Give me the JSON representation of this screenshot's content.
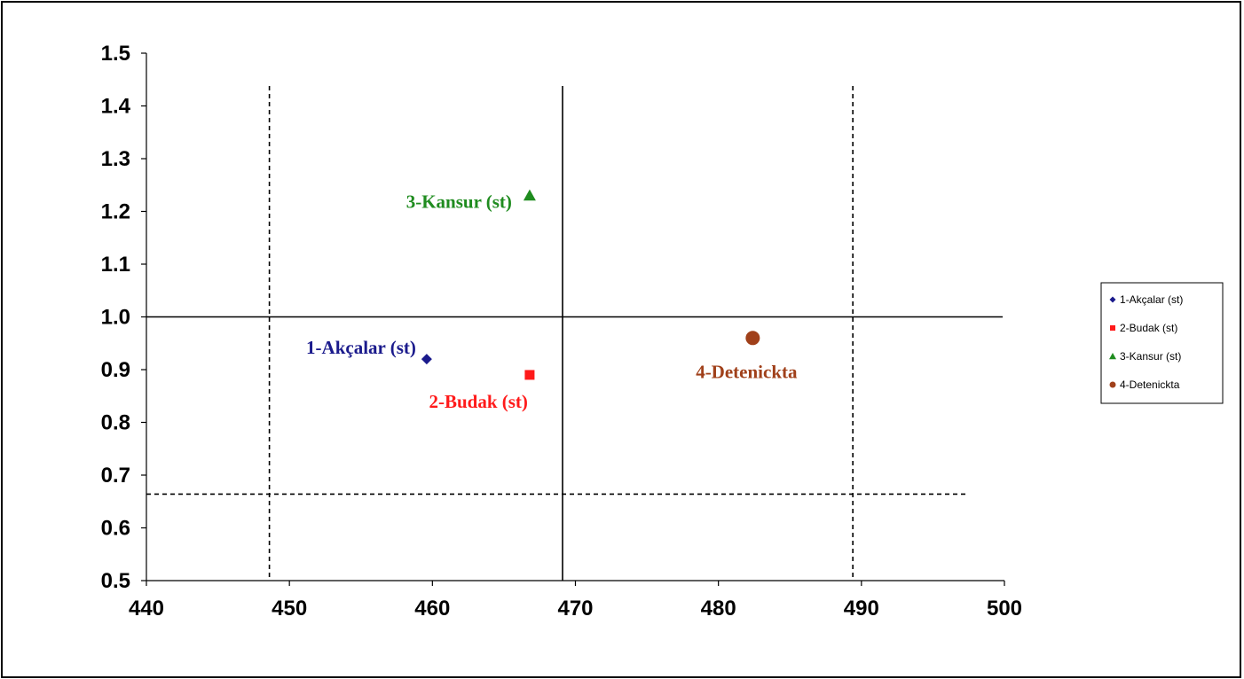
{
  "chart_data": {
    "type": "scatter",
    "title": "",
    "xlabel": "",
    "ylabel": "",
    "xlim": [
      440,
      500
    ],
    "ylim": [
      0.5,
      1.5
    ],
    "x_ticks": [
      440,
      450,
      460,
      470,
      480,
      490,
      500
    ],
    "x_tick_labels": [
      "440",
      "450",
      "460",
      "470",
      "480",
      "490",
      "500"
    ],
    "y_ticks": [
      0.5,
      0.6,
      0.7,
      0.8,
      0.9,
      1.0,
      1.1,
      1.2,
      1.3,
      1.4,
      1.5
    ],
    "y_tick_labels": [
      "0.5",
      "0.6",
      "0.7",
      "0.8",
      "0.9",
      "1.0",
      "1.1",
      "1.2",
      "1.3",
      "1.4",
      "1.5"
    ],
    "grid": false,
    "legend_position": "right",
    "series": [
      {
        "name": "1-Akçalar (st)",
        "label": "1-Akçalar (st)",
        "marker": "diamond",
        "color": "#1a1a8c",
        "x": [
          459.6
        ],
        "y": [
          0.92
        ]
      },
      {
        "name": "2-Budak (st)",
        "label": "2-Budak (st)",
        "marker": "square",
        "color": "#ff1a1a",
        "x": [
          466.8
        ],
        "y": [
          0.89
        ]
      },
      {
        "name": "3-Kansur (st)",
        "label": "3-Kansur (st)",
        "marker": "triangle",
        "color": "#1f8c1f",
        "x": [
          466.8
        ],
        "y": [
          1.23
        ]
      },
      {
        "name": "4-Detenickta",
        "label": "4-Detenickta",
        "marker": "circle",
        "color": "#a0401a",
        "x": [
          482.4
        ],
        "y": [
          0.96
        ]
      }
    ],
    "reference_lines": [
      {
        "orientation": "vertical",
        "value": 469.1,
        "style": "solid"
      },
      {
        "orientation": "vertical",
        "value": 448.6,
        "style": "dashed"
      },
      {
        "orientation": "vertical",
        "value": 489.4,
        "style": "dashed"
      },
      {
        "orientation": "horizontal",
        "value": 1.0,
        "style": "solid"
      },
      {
        "orientation": "horizontal",
        "value": 0.664,
        "style": "dashed"
      }
    ]
  }
}
